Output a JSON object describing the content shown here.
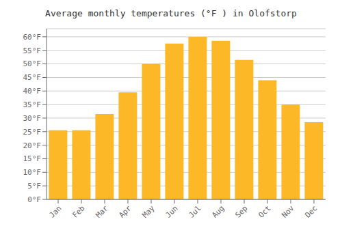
{
  "chart_data": {
    "type": "bar",
    "title": "Average monthly temperatures (°F ) in Olofstorp",
    "categories": [
      "Jan",
      "Feb",
      "Mar",
      "Apr",
      "May",
      "Jun",
      "Jul",
      "Aug",
      "Sep",
      "Oct",
      "Nov",
      "Dec"
    ],
    "values": [
      25.5,
      25.5,
      31.5,
      39.5,
      50.0,
      57.5,
      60.0,
      58.5,
      51.5,
      44.0,
      35.0,
      28.5
    ],
    "color": "#FDB827",
    "ylim": [
      0,
      63
    ],
    "yticks": [
      {
        "value": 0,
        "label": "0°F"
      },
      {
        "value": 5,
        "label": "5°F"
      },
      {
        "value": 10,
        "label": "10°F"
      },
      {
        "value": 15,
        "label": "15°F"
      },
      {
        "value": 20,
        "label": "20°F"
      },
      {
        "value": 25,
        "label": "25°F"
      },
      {
        "value": 30,
        "label": "30°F"
      },
      {
        "value": 35,
        "label": "35°F"
      },
      {
        "value": 40,
        "label": "40°F"
      },
      {
        "value": 45,
        "label": "45°F"
      },
      {
        "value": 50,
        "label": "50°F"
      },
      {
        "value": 55,
        "label": "55°F"
      },
      {
        "value": 60,
        "label": "60°F"
      }
    ],
    "grid": true
  }
}
